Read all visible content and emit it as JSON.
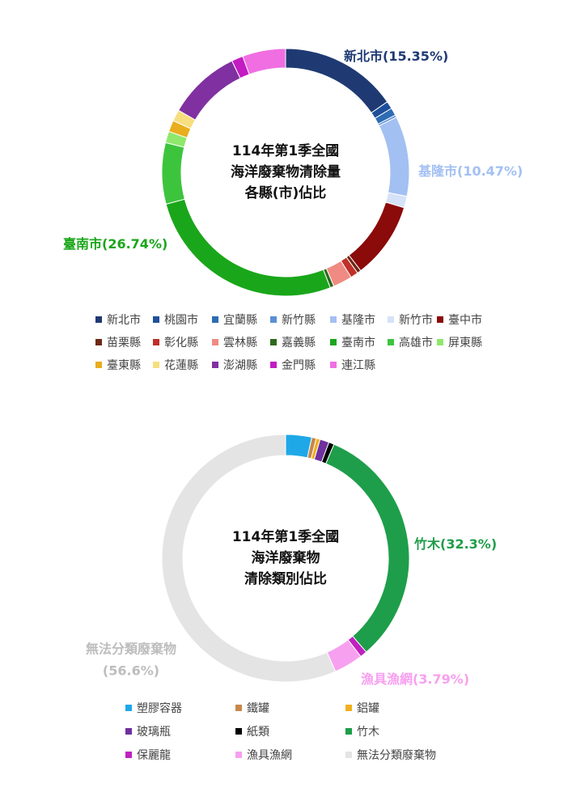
{
  "chart_data": [
    {
      "type": "donut",
      "title": [
        "114年第1季全國",
        "海洋廢棄物清除量",
        "各縣(市)佔比"
      ],
      "categories": [
        "新北市",
        "桃園市",
        "宜蘭縣",
        "新竹縣",
        "基隆市",
        "新竹市",
        "臺中市",
        "苗栗縣",
        "彰化縣",
        "雲林縣",
        "嘉義縣",
        "臺南市",
        "高雄市",
        "屏東縣",
        "臺東縣",
        "花蓮縣",
        "澎湖縣",
        "金門縣",
        "連江縣"
      ],
      "values": [
        15.35,
        1,
        1,
        0.3,
        10.47,
        1.5,
        10,
        0.5,
        1,
        2.5,
        0.5,
        26.74,
        8,
        1.5,
        1.5,
        1.5,
        9.5,
        1.5,
        5.64
      ],
      "value_labels": [
        "(15.35%)",
        null,
        null,
        null,
        "(10.47%)",
        null,
        null,
        null,
        null,
        null,
        null,
        "(26.74%)",
        null,
        null,
        null,
        null,
        null,
        null,
        null
      ],
      "colors": [
        "#1f3a73",
        "#1f4f9c",
        "#2d6cb4",
        "#5a8fd6",
        "#a3c0f2",
        "#d5e2f8",
        "#8b0a0a",
        "#6e2814",
        "#c0302a",
        "#ef8b82",
        "#2d6a1b",
        "#1aa61a",
        "#3dc43d",
        "#8fe86b",
        "#e8ae1e",
        "#f7de7e",
        "#8030a0",
        "#c21cc2",
        "#f06ee2"
      ]
    },
    {
      "type": "donut",
      "title": [
        "114年第1季全國",
        "海洋廢棄物",
        "清除類別佔比"
      ],
      "categories": [
        "塑膠容器",
        "鐵罐",
        "鋁罐",
        "玻璃瓶",
        "紙類",
        "竹木",
        "保麗龍",
        "漁具漁網",
        "無法分類廢棄物"
      ],
      "values": [
        3.4,
        0.6,
        0.5,
        1.2,
        0.7,
        32.3,
        0.91,
        3.79,
        56.6
      ],
      "value_labels": [
        null,
        null,
        null,
        null,
        null,
        "(32.3%)",
        null,
        "(3.79%)",
        "(56.6%)"
      ],
      "colors": [
        "#1fa8e8",
        "#c8874a",
        "#f0b020",
        "#7030a0",
        "#000000",
        "#1e9e4a",
        "#c020c0",
        "#f7a0f0",
        "#e4e4e4"
      ]
    }
  ]
}
